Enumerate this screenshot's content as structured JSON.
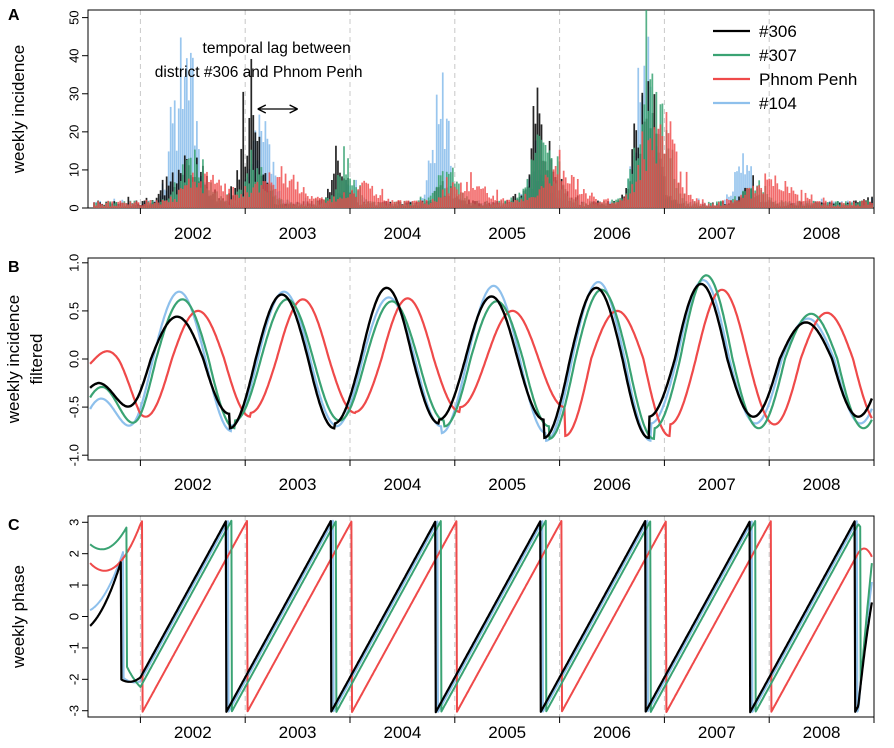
{
  "colors": {
    "d306": "#000000",
    "d307": "#3aa373",
    "phnom_penh": "#ef4a4a",
    "d104": "#8ec0ec",
    "grid": "#c8c8c8",
    "axis": "#000000"
  },
  "chart_data": [
    {
      "id": "A",
      "type": "bar",
      "panel_label": "A",
      "ylabel": "weekly incidence",
      "xlabel": "",
      "x_ticks": [
        "2002",
        "2003",
        "2004",
        "2005",
        "2006",
        "2007",
        "2008"
      ],
      "xlim": [
        2001.5,
        2009.0
      ],
      "ylim": [
        0,
        52
      ],
      "y_ticks": [
        "0",
        "10",
        "20",
        "30",
        "40",
        "50"
      ],
      "grid": "vertical dashed lines at year boundaries",
      "legend_position": "top-right",
      "annotation": {
        "line1": "temporal lag between",
        "line2": "district #306 and Phnom Penh",
        "arrow_from_year": 2003.12,
        "arrow_to_year": 2003.5,
        "arrow_y": 26
      },
      "series": [
        {
          "name": "#306",
          "color_key": "d306",
          "peaks": [
            {
              "year": 2002.45,
              "peak": 17,
              "width": 0.14
            },
            {
              "year": 2003.05,
              "peak": 28,
              "width": 0.09
            },
            {
              "year": 2003.9,
              "peak": 18,
              "width": 0.07
            },
            {
              "year": 2004.9,
              "peak": 6,
              "width": 0.08
            },
            {
              "year": 2005.82,
              "peak": 24,
              "width": 0.12
            },
            {
              "year": 2006.82,
              "peak": 35,
              "width": 0.1
            },
            {
              "year": 2007.83,
              "peak": 5,
              "width": 0.08
            }
          ]
        },
        {
          "name": "#307",
          "color_key": "d307",
          "peaks": [
            {
              "year": 2002.5,
              "peak": 16,
              "width": 0.12
            },
            {
              "year": 2003.1,
              "peak": 13,
              "width": 0.1
            },
            {
              "year": 2003.95,
              "peak": 16,
              "width": 0.08
            },
            {
              "year": 2004.92,
              "peak": 10,
              "width": 0.1
            },
            {
              "year": 2005.85,
              "peak": 22,
              "width": 0.12
            },
            {
              "year": 2006.88,
              "peak": 50,
              "width": 0.12
            },
            {
              "year": 2007.85,
              "peak": 8,
              "width": 0.1
            }
          ]
        },
        {
          "name": "Phnom Penh",
          "color_key": "phnom_penh",
          "peaks": [
            {
              "year": 2002.6,
              "peak": 9,
              "width": 0.18
            },
            {
              "year": 2003.3,
              "peak": 10,
              "width": 0.2
            },
            {
              "year": 2004.1,
              "peak": 6,
              "width": 0.15
            },
            {
              "year": 2005.1,
              "peak": 7,
              "width": 0.18
            },
            {
              "year": 2006.0,
              "peak": 11,
              "width": 0.17
            },
            {
              "year": 2006.95,
              "peak": 30,
              "width": 0.14
            },
            {
              "year": 2008.0,
              "peak": 8,
              "width": 0.18
            }
          ]
        },
        {
          "name": "#104",
          "color_key": "d104",
          "peaks": [
            {
              "year": 2002.42,
              "peak": 52,
              "width": 0.1
            },
            {
              "year": 2003.15,
              "peak": 27,
              "width": 0.09
            },
            {
              "year": 2004.0,
              "peak": 8,
              "width": 0.08
            },
            {
              "year": 2004.85,
              "peak": 38,
              "width": 0.07
            },
            {
              "year": 2005.8,
              "peak": 12,
              "width": 0.1
            },
            {
              "year": 2006.8,
              "peak": 52,
              "width": 0.08
            },
            {
              "year": 2007.75,
              "peak": 17,
              "width": 0.07
            }
          ]
        }
      ]
    },
    {
      "id": "B",
      "type": "line",
      "panel_label": "B",
      "ylabel_line1": "weekly incidence",
      "ylabel_line2": "filtered",
      "xlabel": "",
      "x_ticks": [
        "2002",
        "2003",
        "2004",
        "2005",
        "2006",
        "2007",
        "2008"
      ],
      "xlim": [
        2001.5,
        2009.0
      ],
      "ylim": [
        -1.05,
        1.05
      ],
      "y_ticks": [
        "-1.0",
        "-0.5",
        "0.0",
        "0.5",
        "1.0"
      ],
      "grid": "vertical dashed lines at year boundaries",
      "series": [
        {
          "name": "#306",
          "color_key": "d306",
          "t0": 2001.52,
          "t1": 2008.98,
          "phase_shift": 0.0,
          "start_value": -0.3,
          "peaks": [
            0.44,
            0.67,
            0.74,
            0.65,
            0.74,
            0.78,
            0.38
          ],
          "troughs": [
            -0.57,
            -0.72,
            -0.67,
            -0.63,
            -0.82,
            -0.6
          ]
        },
        {
          "name": "#307",
          "color_key": "d307",
          "t0": 2001.52,
          "t1": 2008.98,
          "phase_shift": 0.05,
          "start_value": -0.4,
          "peaks": [
            0.62,
            0.62,
            0.6,
            0.6,
            0.72,
            0.87,
            0.47
          ],
          "troughs": [
            -0.72,
            -0.64,
            -0.64,
            -0.7,
            -0.83,
            -0.72
          ]
        },
        {
          "name": "Phnom Penh",
          "color_key": "phnom_penh",
          "t0": 2001.52,
          "t1": 2008.98,
          "phase_shift": 0.2,
          "start_value": -0.05,
          "peaks": [
            0.5,
            0.62,
            0.63,
            0.5,
            0.5,
            0.72,
            0.48
          ],
          "troughs": [
            -0.6,
            -0.56,
            -0.55,
            -0.5,
            -0.8,
            -0.68
          ]
        },
        {
          "name": "#104",
          "color_key": "d104",
          "t0": 2001.52,
          "t1": 2008.98,
          "phase_shift": 0.02,
          "start_value": -0.52,
          "peaks": [
            0.7,
            0.7,
            0.64,
            0.76,
            0.8,
            0.82,
            0.42
          ],
          "troughs": [
            -0.75,
            -0.69,
            -0.7,
            -0.77,
            -0.85,
            -0.67
          ]
        }
      ]
    },
    {
      "id": "C",
      "type": "line",
      "panel_label": "C",
      "ylabel": "weekly phase",
      "xlabel": "",
      "x_ticks": [
        "2002",
        "2003",
        "2004",
        "2005",
        "2006",
        "2007",
        "2008"
      ],
      "xlim": [
        2001.5,
        2009.0
      ],
      "ylim": [
        -3.2,
        3.2
      ],
      "y_ticks": [
        "-3",
        "-2",
        "-1",
        "0",
        "1",
        "2",
        "3"
      ],
      "grid": "vertical dashed lines at year boundaries",
      "series": [
        {
          "name": "#306",
          "color_key": "d306",
          "t0": 2001.52,
          "t1": 2008.98,
          "phase_shift": 0.0,
          "start_value": -0.3,
          "end_value": 0.45
        },
        {
          "name": "#307",
          "color_key": "d307",
          "t0": 2001.52,
          "t1": 2008.98,
          "phase_shift": 0.05,
          "start_value": 2.3,
          "end_value": 1.7
        },
        {
          "name": "Phnom Penh",
          "color_key": "phnom_penh",
          "t0": 2001.52,
          "t1": 2008.98,
          "phase_shift": 0.2,
          "start_value": 1.7,
          "end_value": 1.9
        },
        {
          "name": "#104",
          "color_key": "d104",
          "t0": 2001.52,
          "t1": 2008.98,
          "phase_shift": 0.02,
          "start_value": 0.2,
          "end_value": 1.1
        }
      ]
    }
  ]
}
